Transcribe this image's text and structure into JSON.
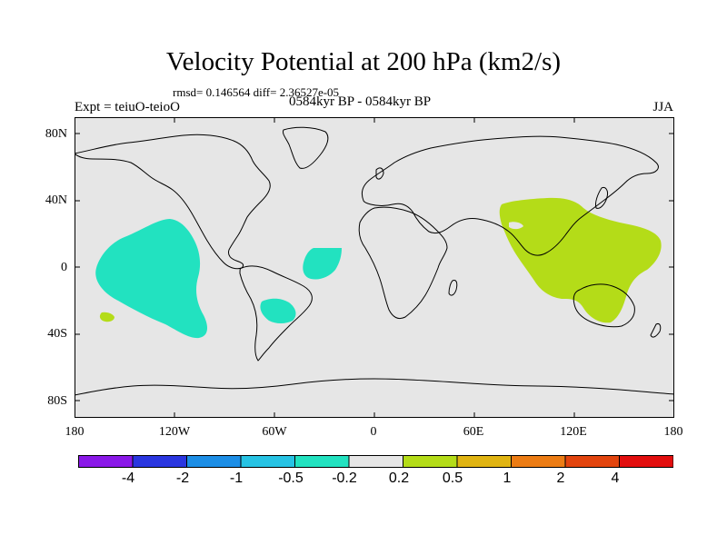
{
  "title": "Velocity Potential at 200 hPa (km2/s)",
  "stats_line": "rmsd= 0.146564 diff= 2.36527e-05",
  "left_label": "Expt = teiuO-teioO",
  "center_label": "0584kyr BP - 0584kyr BP",
  "right_label": "JJA",
  "lat_labels": [
    "80N",
    "40N",
    "0",
    "40S",
    "80S"
  ],
  "lon_labels": [
    "180",
    "120W",
    "60W",
    "0",
    "60E",
    "120E",
    "180"
  ],
  "colorbar": {
    "colors": [
      "#8a18e8",
      "#2a36e0",
      "#1c8ee6",
      "#27c3e4",
      "#22e2c0",
      "#e6e6e6",
      "#b4dc18",
      "#e0b412",
      "#ec7c14",
      "#e2440e",
      "#e20e0e"
    ],
    "labels": [
      "-4",
      "-2",
      "-1",
      "-0.5",
      "-0.2",
      "0.2",
      "0.5",
      "1",
      "2",
      "4"
    ]
  },
  "colors": {
    "background": "#e6e6e6",
    "negative_fill": "#22e2c0",
    "positive_fill": "#b4dc18",
    "coast": "#000000"
  }
}
